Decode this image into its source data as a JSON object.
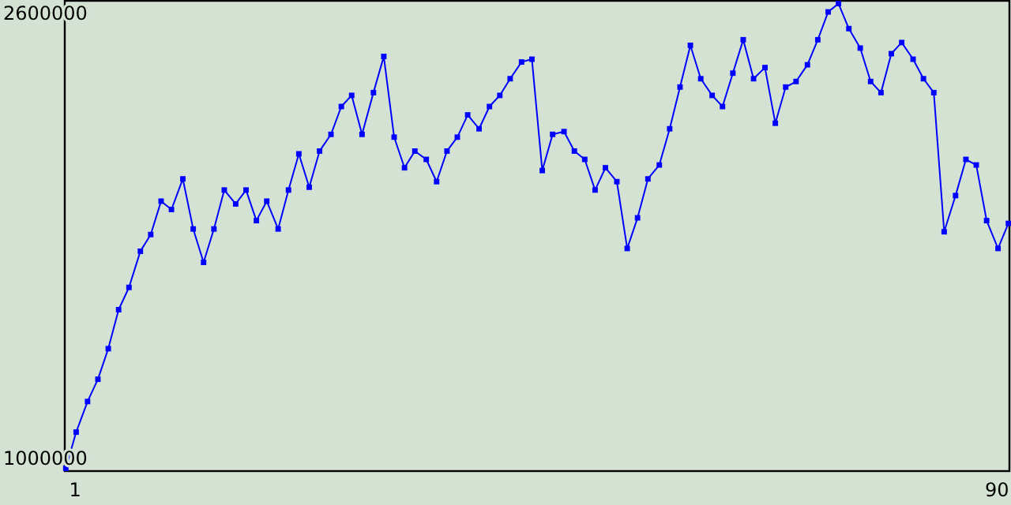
{
  "chart_data": {
    "type": "line",
    "x": [
      0.1,
      1.1,
      2.2,
      3.2,
      4.2,
      5.2,
      6.2,
      7.3,
      8.3,
      9.3,
      10.3,
      11.4,
      12.4,
      13.4,
      14.4,
      15.4,
      16.5,
      17.5,
      18.5,
      19.5,
      20.6,
      21.6,
      22.6,
      23.6,
      24.6,
      25.7,
      26.7,
      27.7,
      28.7,
      29.8,
      30.8,
      31.8,
      32.8,
      33.8,
      34.9,
      35.9,
      36.9,
      37.9,
      38.9,
      40.0,
      41.0,
      42.0,
      43.0,
      44.1,
      45.1,
      46.1,
      47.1,
      48.2,
      49.2,
      50.2,
      51.2,
      52.2,
      53.3,
      54.3,
      55.3,
      56.3,
      57.4,
      58.4,
      59.4,
      60.4,
      61.4,
      62.5,
      63.5,
      64.5,
      65.5,
      66.5,
      67.6,
      68.6,
      69.6,
      70.6,
      71.7,
      72.7,
      73.7,
      74.7,
      75.7,
      76.8,
      77.8,
      78.8,
      79.8,
      80.8,
      81.9,
      82.9,
      83.9,
      84.9,
      86.0,
      87.0,
      88.0,
      89.0,
      90.1,
      91.1
    ],
    "series": [
      {
        "color": "#0000ff",
        "values": [
          970000,
          1100000,
          1210000,
          1290000,
          1400000,
          1540000,
          1620000,
          1750000,
          1810000,
          1930000,
          1900000,
          2010000,
          1830000,
          1710000,
          1830000,
          1970000,
          1920000,
          1970000,
          1860000,
          1930000,
          1830000,
          1970000,
          2100000,
          1980000,
          2110000,
          2170000,
          2270000,
          2310000,
          2170000,
          2320000,
          2450000,
          2160000,
          2050000,
          2110000,
          2080000,
          2000000,
          2110000,
          2160000,
          2240000,
          2190000,
          2270000,
          2310000,
          2370000,
          2430000,
          2440000,
          2040000,
          2170000,
          2180000,
          2110000,
          2080000,
          1970000,
          2050000,
          2000000,
          1760000,
          1870000,
          2010000,
          2060000,
          2190000,
          2340000,
          2490000,
          2370000,
          2310000,
          2270000,
          2390000,
          2510000,
          2370000,
          2410000,
          2210000,
          2340000,
          2360000,
          2420000,
          2510000,
          2610000,
          2640000,
          2550000,
          2480000,
          2360000,
          2320000,
          2460000,
          2500000,
          2440000,
          2370000,
          2320000,
          1820000,
          1950000,
          2080000,
          2060000,
          1860000,
          1760000,
          1850000
        ]
      }
    ],
    "xlim": [
      0,
      91.2
    ],
    "xticks": [
      1,
      90
    ],
    "ylim": [
      960000,
      2650000
    ],
    "yticks": [
      1000000,
      2600000
    ],
    "grid": false,
    "marker": "square",
    "line_style": "solid"
  }
}
